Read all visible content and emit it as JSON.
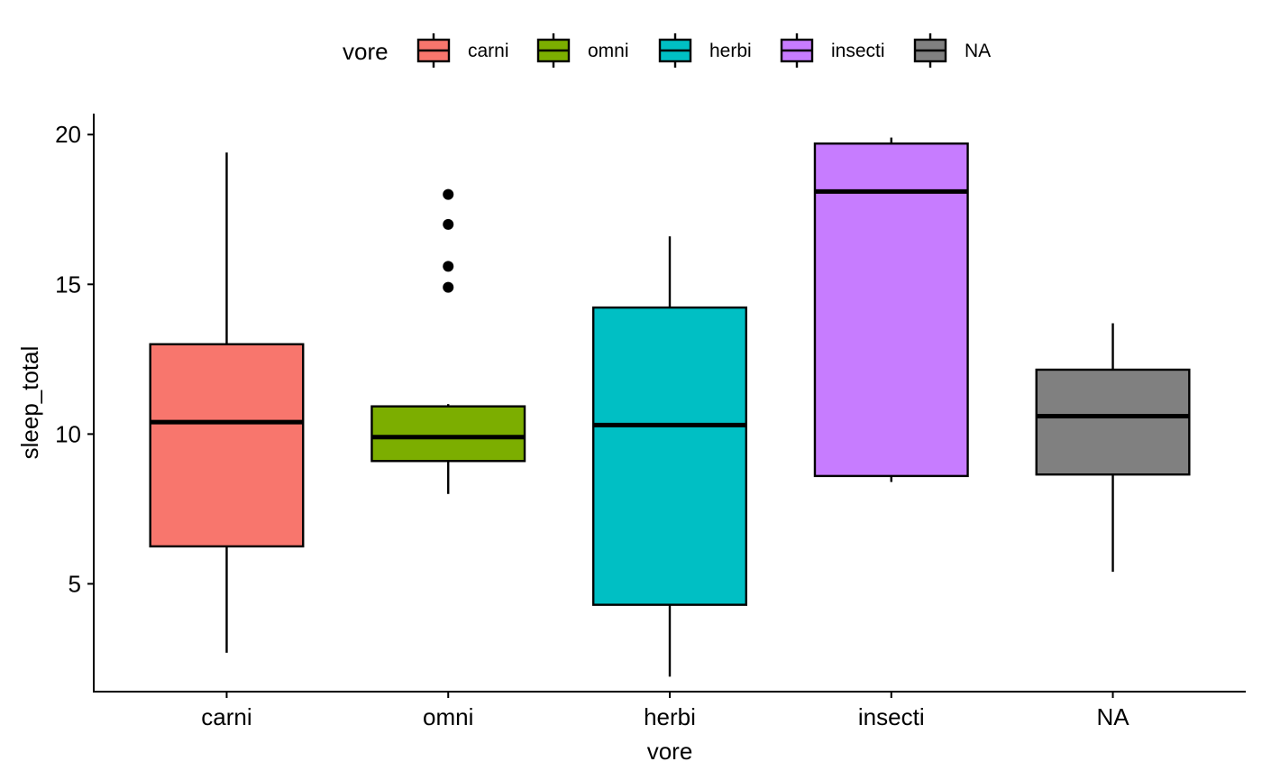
{
  "chart_data": {
    "type": "boxplot",
    "title": "",
    "xlabel": "vore",
    "ylabel": "sleep_total",
    "ylim": [
      1.4,
      20.7
    ],
    "yticks": [
      5,
      10,
      15,
      20
    ],
    "grid": false,
    "legend": {
      "position": "top",
      "title": "vore",
      "entries": [
        "carni",
        "omni",
        "herbi",
        "insecti",
        "NA"
      ]
    },
    "categories": [
      "carni",
      "omni",
      "herbi",
      "insecti",
      "NA"
    ],
    "boxes": [
      {
        "category": "carni",
        "color": "#F8766D",
        "whisker_low": 2.7,
        "q1": 6.25,
        "median": 10.4,
        "q3": 13.0,
        "whisker_high": 19.4,
        "outliers": []
      },
      {
        "category": "omni",
        "color": "#7CAE00",
        "whisker_low": 8.0,
        "q1": 9.1,
        "median": 9.9,
        "q3": 10.925,
        "whisker_high": 11.0,
        "outliers": [
          18.0,
          17.0,
          15.6,
          14.9
        ]
      },
      {
        "category": "herbi",
        "color": "#00BFC4",
        "whisker_low": 1.9,
        "q1": 4.3,
        "median": 10.3,
        "q3": 14.225,
        "whisker_high": 16.6,
        "outliers": []
      },
      {
        "category": "insecti",
        "color": "#C77CFF",
        "whisker_low": 8.4,
        "q1": 8.6,
        "median": 18.1,
        "q3": 19.7,
        "whisker_high": 19.9,
        "outliers": []
      },
      {
        "category": "NA",
        "color": "#808080",
        "whisker_low": 5.4,
        "q1": 8.65,
        "median": 10.6,
        "q3": 12.15,
        "whisker_high": 13.7,
        "outliers": []
      }
    ]
  }
}
